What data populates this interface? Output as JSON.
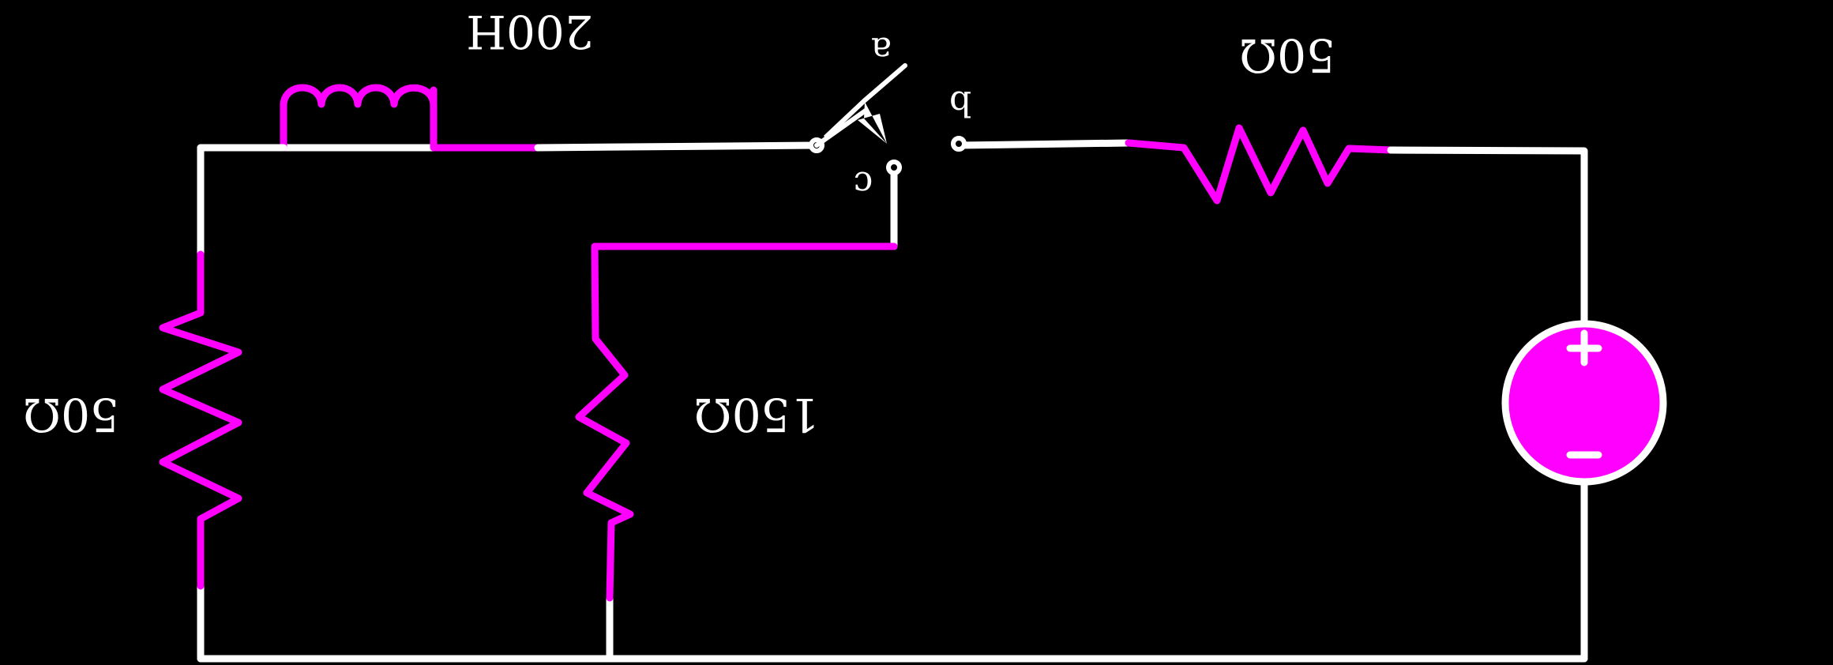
{
  "colors": {
    "background": "#000000",
    "wire": "#ffffff",
    "component": "#ff00ff"
  },
  "labels": {
    "inductor": "200H",
    "resistor_left": "50Ω",
    "resistor_middle": "150Ω",
    "resistor_top_right": "50Ω",
    "switch_a": "a",
    "switch_b": "b",
    "switch_c": "c",
    "source_plus": "+",
    "source_minus": "−"
  }
}
